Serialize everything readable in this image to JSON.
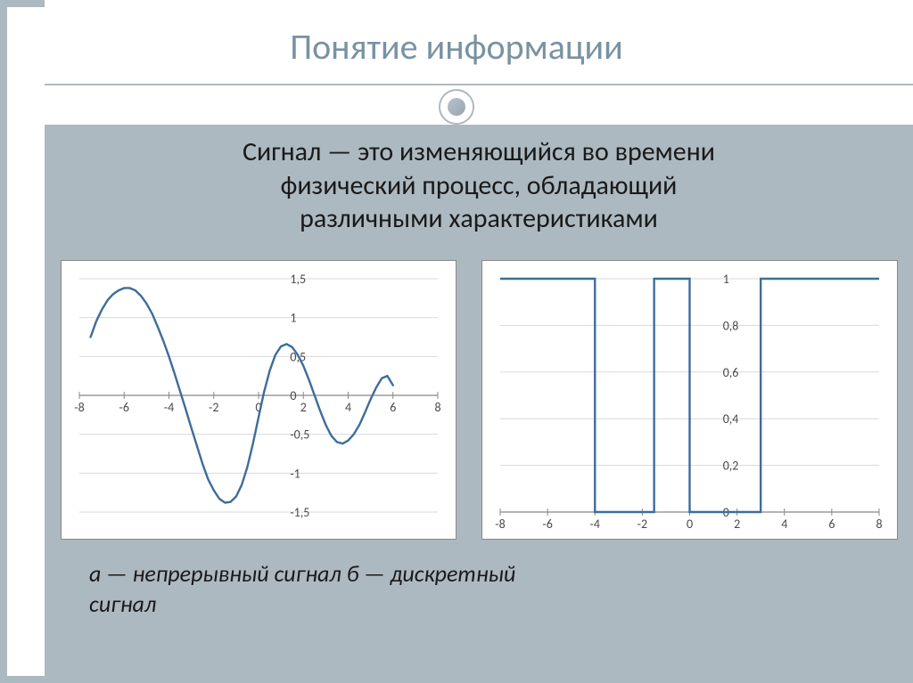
{
  "title": "Понятие информации",
  "definition_line1": "Сигнал — это изменяющийся во времени",
  "definition_line2": "физический процесс, обладающий",
  "definition_line3": "различными характеристиками",
  "caption_line1": "а — непрерывный сигнал б — дискретный",
  "caption_line2": "сигнал",
  "colors": {
    "accent": "#adb9c1",
    "title": "#7992a2",
    "chart_line": "#3e6d9a",
    "axis": "#888888",
    "grid": "#d9d9d9",
    "tick_text": "#4a4a4a",
    "chart_bg": "#ffffff",
    "text": "#1a1a1a"
  },
  "chart_a": {
    "type": "line",
    "xlim": [
      -8,
      8
    ],
    "ylim": [
      -1.5,
      1.5
    ],
    "xtick_step": 2,
    "ytick_step": 0.5,
    "xticks": [
      -8,
      -6,
      -4,
      -2,
      0,
      2,
      4,
      6,
      8
    ],
    "yticks": [
      -1.5,
      -1,
      -0.5,
      0,
      0.5,
      1,
      1.5
    ],
    "line_color": "#3e6d9a",
    "line_width": 2.4,
    "grid_color": "#d9d9d9",
    "axis_color": "#888888",
    "tick_fontsize": 14,
    "points": [
      [
        -7.5,
        0.75
      ],
      [
        -7.25,
        0.95
      ],
      [
        -7,
        1.1
      ],
      [
        -6.75,
        1.22
      ],
      [
        -6.5,
        1.3
      ],
      [
        -6.25,
        1.35
      ],
      [
        -6,
        1.38
      ],
      [
        -5.75,
        1.38
      ],
      [
        -5.5,
        1.35
      ],
      [
        -5.25,
        1.28
      ],
      [
        -5,
        1.18
      ],
      [
        -4.75,
        1.05
      ],
      [
        -4.5,
        0.88
      ],
      [
        -4.25,
        0.7
      ],
      [
        -4,
        0.5
      ],
      [
        -3.75,
        0.28
      ],
      [
        -3.5,
        0.05
      ],
      [
        -3.25,
        -0.18
      ],
      [
        -3,
        -0.42
      ],
      [
        -2.75,
        -0.65
      ],
      [
        -2.5,
        -0.88
      ],
      [
        -2.25,
        -1.08
      ],
      [
        -2,
        -1.22
      ],
      [
        -1.75,
        -1.33
      ],
      [
        -1.5,
        -1.38
      ],
      [
        -1.25,
        -1.37
      ],
      [
        -1,
        -1.3
      ],
      [
        -0.75,
        -1.15
      ],
      [
        -0.5,
        -0.92
      ],
      [
        -0.25,
        -0.62
      ],
      [
        0,
        -0.28
      ],
      [
        0.25,
        0.05
      ],
      [
        0.5,
        0.32
      ],
      [
        0.75,
        0.52
      ],
      [
        1,
        0.63
      ],
      [
        1.25,
        0.66
      ],
      [
        1.5,
        0.62
      ],
      [
        1.75,
        0.52
      ],
      [
        2,
        0.38
      ],
      [
        2.25,
        0.2
      ],
      [
        2.5,
        0.0
      ],
      [
        2.75,
        -0.2
      ],
      [
        3,
        -0.38
      ],
      [
        3.25,
        -0.52
      ],
      [
        3.5,
        -0.6
      ],
      [
        3.75,
        -0.62
      ],
      [
        4,
        -0.58
      ],
      [
        4.25,
        -0.5
      ],
      [
        4.5,
        -0.38
      ],
      [
        4.75,
        -0.22
      ],
      [
        5,
        -0.05
      ],
      [
        5.25,
        0.1
      ],
      [
        5.5,
        0.22
      ],
      [
        5.75,
        0.25
      ],
      [
        6,
        0.13
      ]
    ]
  },
  "chart_b": {
    "type": "step",
    "xlim": [
      -8,
      8
    ],
    "ylim": [
      0,
      1
    ],
    "xtick_step": 2,
    "ytick_step": 0.2,
    "xticks": [
      -8,
      -6,
      -4,
      -2,
      0,
      2,
      4,
      6,
      8
    ],
    "yticks": [
      0,
      0.2,
      0.4,
      0.6,
      0.8,
      1
    ],
    "line_color": "#3e6d9a",
    "line_width": 2.4,
    "grid_color": "#d9d9d9",
    "axis_color": "#888888",
    "tick_fontsize": 14,
    "points": [
      [
        -8,
        1
      ],
      [
        -4,
        1
      ],
      [
        -4,
        0
      ],
      [
        -1.5,
        0
      ],
      [
        -1.5,
        1
      ],
      [
        0,
        1
      ],
      [
        0,
        0
      ],
      [
        3,
        0
      ],
      [
        3,
        1
      ],
      [
        8,
        1
      ]
    ]
  }
}
